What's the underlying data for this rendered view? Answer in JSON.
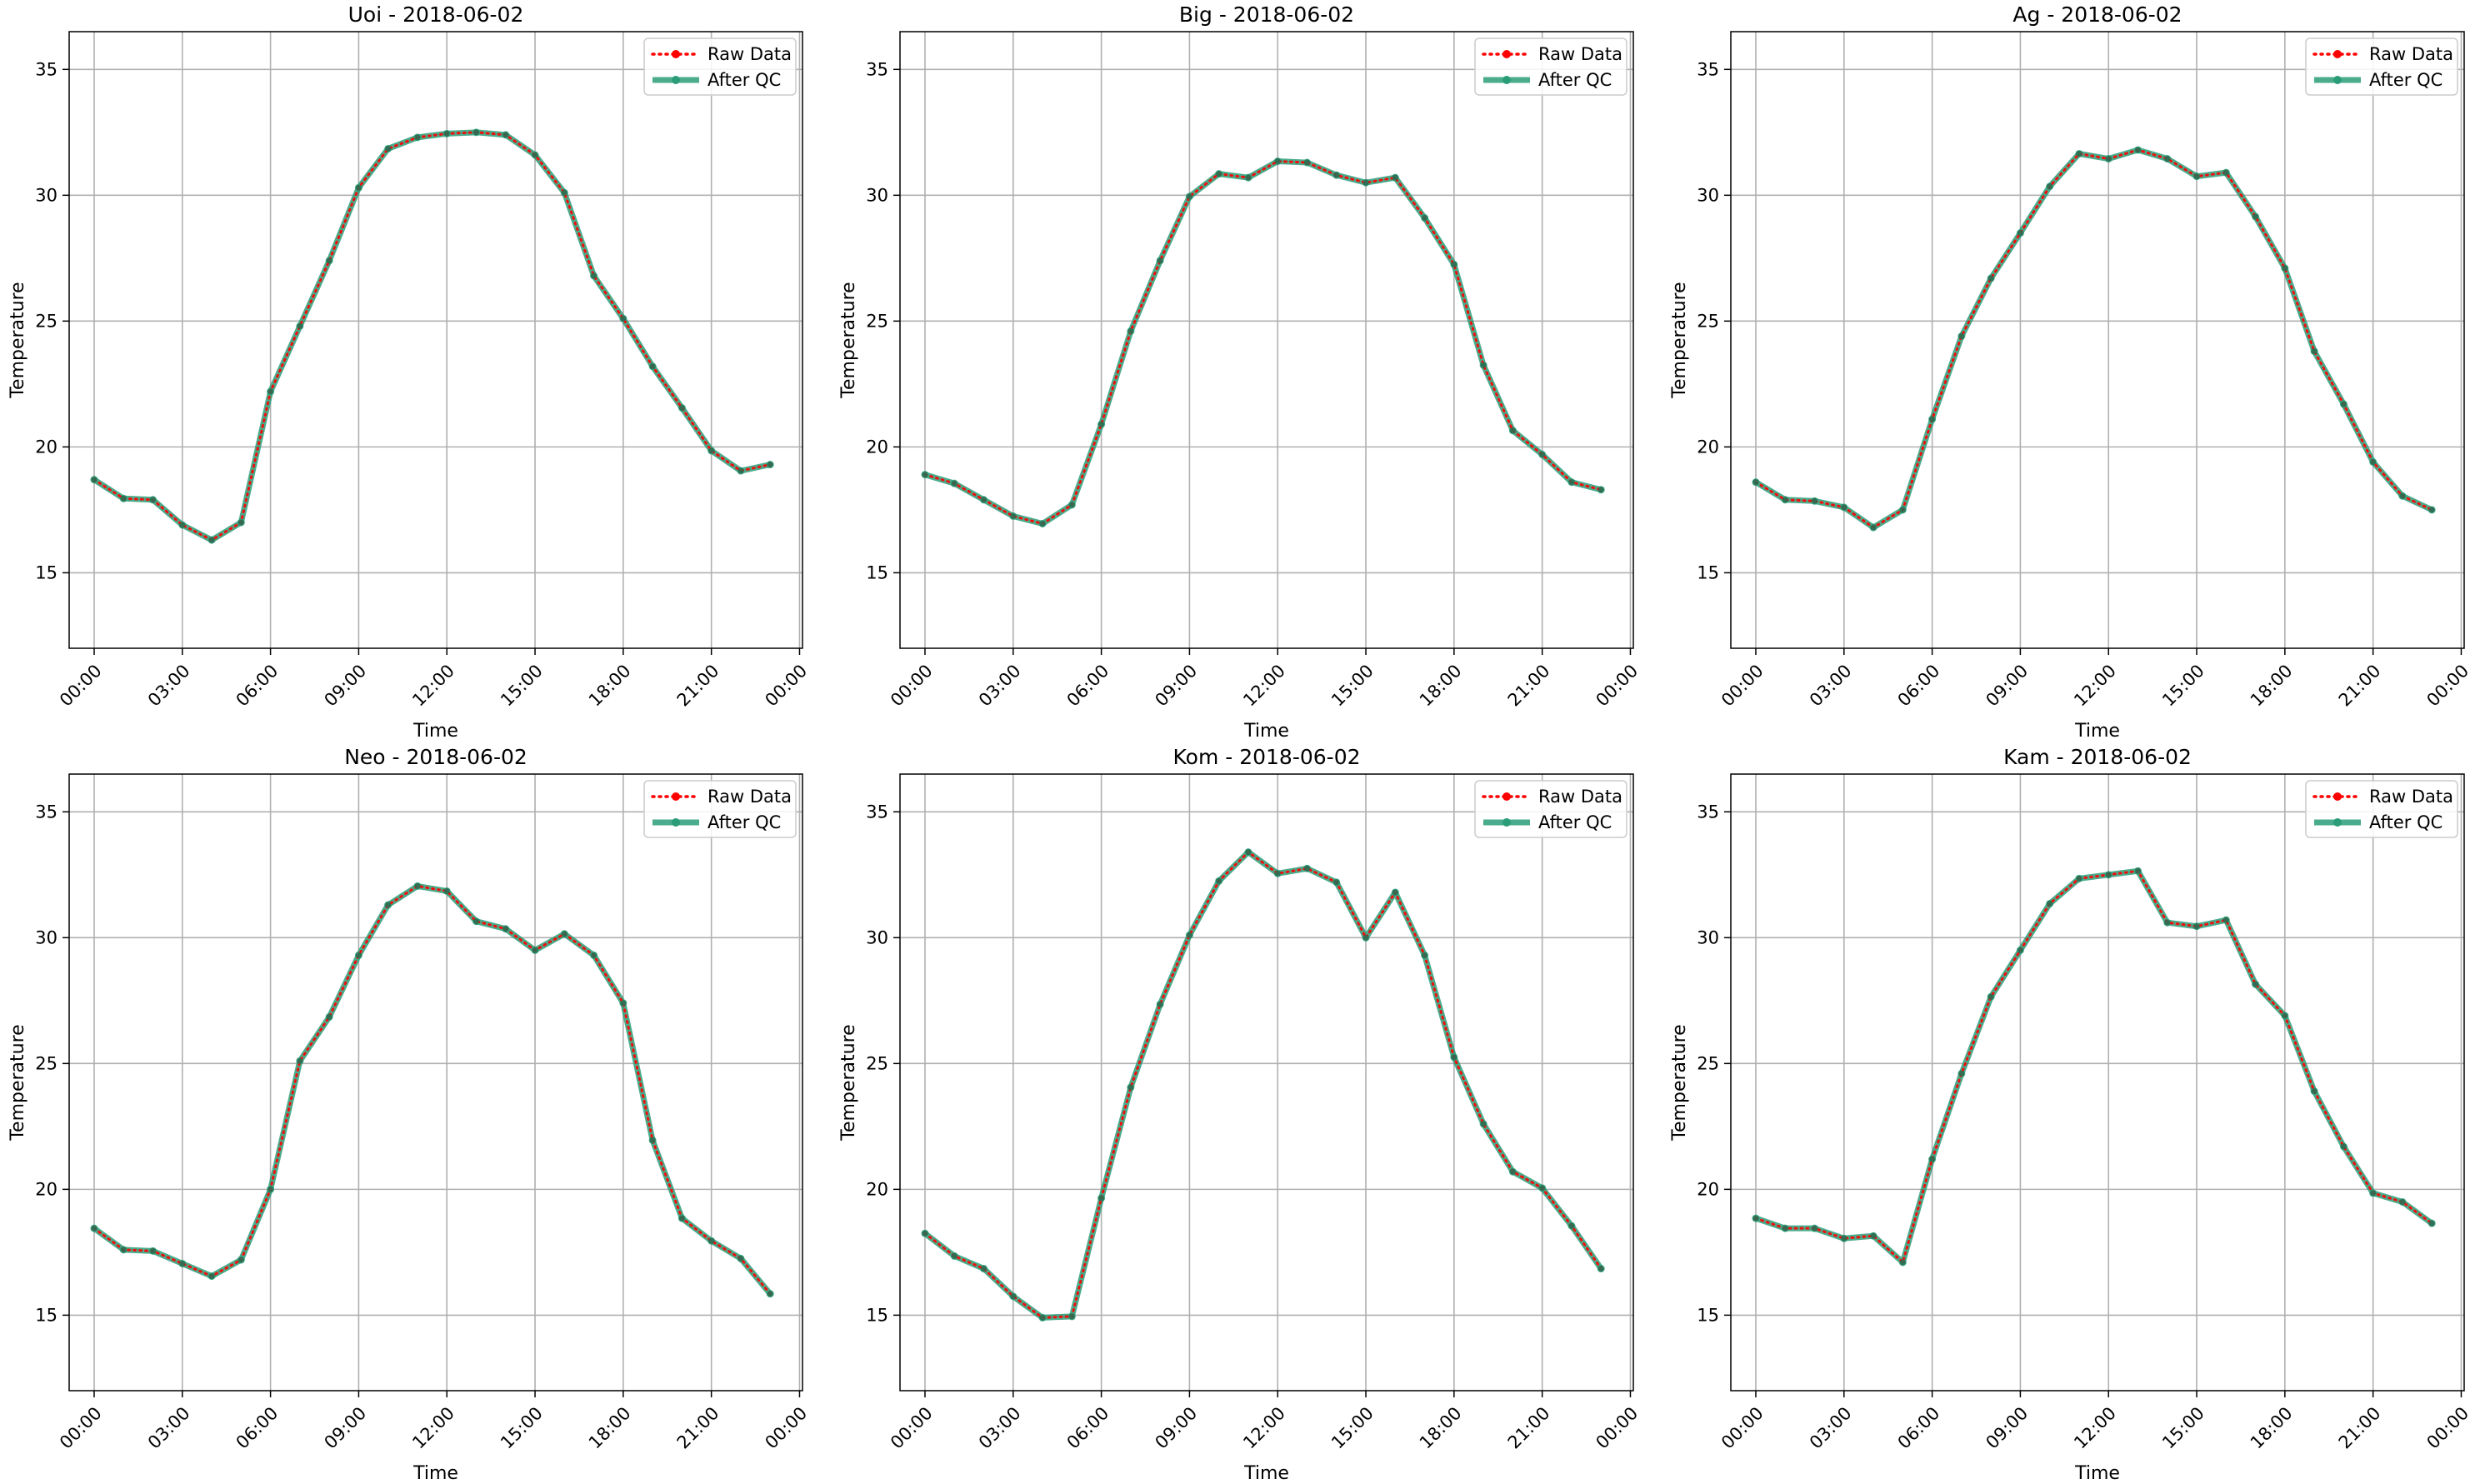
{
  "chart_data": [
    {
      "type": "line",
      "title": "Uoi - 2018-06-02",
      "xlabel": "Time",
      "ylabel": "Temperature",
      "ylim": [
        12,
        36.5
      ],
      "yticks": [
        15,
        20,
        25,
        30,
        35
      ],
      "xlim": [
        -0.85,
        24.1
      ],
      "xticks": [
        0,
        3,
        6,
        9,
        12,
        15,
        18,
        21,
        24
      ],
      "xtick_labels": [
        "00:00",
        "03:00",
        "06:00",
        "09:00",
        "12:00",
        "15:00",
        "18:00",
        "21:00",
        "00:00"
      ],
      "grid": true,
      "legend": "top-right",
      "x": [
        "00:00",
        "01:00",
        "02:00",
        "03:00",
        "04:00",
        "05:00",
        "06:00",
        "07:00",
        "08:00",
        "09:00",
        "10:00",
        "11:00",
        "12:00",
        "13:00",
        "14:00",
        "15:00",
        "16:00",
        "17:00",
        "18:00",
        "19:00",
        "20:00",
        "21:00",
        "22:00",
        "23:00"
      ],
      "series": [
        {
          "name": "Raw Data",
          "color": "#ff0000",
          "style": "dotted",
          "values": [
            18.7,
            17.95,
            17.9,
            16.9,
            16.3,
            17.0,
            22.2,
            24.8,
            27.4,
            30.3,
            31.85,
            32.3,
            32.45,
            32.5,
            32.4,
            31.6,
            30.1,
            26.8,
            25.1,
            23.2,
            21.55,
            19.85,
            19.05,
            19.3
          ]
        },
        {
          "name": "After QC",
          "color": "#2a9d78",
          "style": "solid",
          "values": [
            18.7,
            17.95,
            17.9,
            16.9,
            16.3,
            17.0,
            22.2,
            24.8,
            27.4,
            30.3,
            31.85,
            32.3,
            32.45,
            32.5,
            32.4,
            31.6,
            30.1,
            26.8,
            25.1,
            23.2,
            21.55,
            19.85,
            19.05,
            19.3
          ]
        }
      ]
    },
    {
      "type": "line",
      "title": "Big - 2018-06-02",
      "xlabel": "Time",
      "ylabel": "Temperature",
      "ylim": [
        12,
        36.5
      ],
      "yticks": [
        15,
        20,
        25,
        30,
        35
      ],
      "xlim": [
        -0.85,
        24.1
      ],
      "xticks": [
        0,
        3,
        6,
        9,
        12,
        15,
        18,
        21,
        24
      ],
      "xtick_labels": [
        "00:00",
        "03:00",
        "06:00",
        "09:00",
        "12:00",
        "15:00",
        "18:00",
        "21:00",
        "00:00"
      ],
      "grid": true,
      "legend": "top-right",
      "x": [
        "00:00",
        "01:00",
        "02:00",
        "03:00",
        "04:00",
        "05:00",
        "06:00",
        "07:00",
        "08:00",
        "09:00",
        "10:00",
        "11:00",
        "12:00",
        "13:00",
        "14:00",
        "15:00",
        "16:00",
        "17:00",
        "18:00",
        "19:00",
        "20:00",
        "21:00",
        "22:00",
        "23:00"
      ],
      "series": [
        {
          "name": "Raw Data",
          "color": "#ff0000",
          "style": "dotted",
          "values": [
            18.9,
            18.55,
            17.9,
            17.25,
            16.95,
            17.7,
            20.9,
            24.6,
            27.4,
            29.95,
            30.85,
            30.7,
            31.35,
            31.3,
            30.8,
            30.5,
            30.7,
            29.1,
            27.25,
            23.25,
            20.65,
            19.7,
            18.6,
            18.3
          ]
        },
        {
          "name": "After QC",
          "color": "#2a9d78",
          "style": "solid",
          "values": [
            18.9,
            18.55,
            17.9,
            17.25,
            16.95,
            17.7,
            20.9,
            24.6,
            27.4,
            29.95,
            30.85,
            30.7,
            31.35,
            31.3,
            30.8,
            30.5,
            30.7,
            29.1,
            27.25,
            23.25,
            20.65,
            19.7,
            18.6,
            18.3
          ]
        }
      ]
    },
    {
      "type": "line",
      "title": "Ag - 2018-06-02",
      "xlabel": "Time",
      "ylabel": "Temperature",
      "ylim": [
        12,
        36.5
      ],
      "yticks": [
        15,
        20,
        25,
        30,
        35
      ],
      "xlim": [
        -0.85,
        24.1
      ],
      "xticks": [
        0,
        3,
        6,
        9,
        12,
        15,
        18,
        21,
        24
      ],
      "xtick_labels": [
        "00:00",
        "03:00",
        "06:00",
        "09:00",
        "12:00",
        "15:00",
        "18:00",
        "21:00",
        "00:00"
      ],
      "grid": true,
      "legend": "top-right",
      "x": [
        "00:00",
        "01:00",
        "02:00",
        "03:00",
        "04:00",
        "05:00",
        "06:00",
        "07:00",
        "08:00",
        "09:00",
        "10:00",
        "11:00",
        "12:00",
        "13:00",
        "14:00",
        "15:00",
        "16:00",
        "17:00",
        "18:00",
        "19:00",
        "20:00",
        "21:00",
        "22:00",
        "23:00"
      ],
      "series": [
        {
          "name": "Raw Data",
          "color": "#ff0000",
          "style": "dotted",
          "values": [
            18.6,
            17.9,
            17.85,
            17.6,
            16.8,
            17.5,
            21.1,
            24.4,
            26.7,
            28.5,
            30.35,
            31.65,
            31.45,
            31.8,
            31.45,
            30.75,
            30.9,
            29.15,
            27.1,
            23.8,
            21.7,
            19.4,
            18.05,
            17.5
          ]
        },
        {
          "name": "After QC",
          "color": "#2a9d78",
          "style": "solid",
          "values": [
            18.6,
            17.9,
            17.85,
            17.6,
            16.8,
            17.5,
            21.1,
            24.4,
            26.7,
            28.5,
            30.35,
            31.65,
            31.45,
            31.8,
            31.45,
            30.75,
            30.9,
            29.15,
            27.1,
            23.8,
            21.7,
            19.4,
            18.05,
            17.5
          ]
        }
      ]
    },
    {
      "type": "line",
      "title": "Neo - 2018-06-02",
      "xlabel": "Time",
      "ylabel": "Temperature",
      "ylim": [
        12,
        36.5
      ],
      "yticks": [
        15,
        20,
        25,
        30,
        35
      ],
      "xlim": [
        -0.85,
        24.1
      ],
      "xticks": [
        0,
        3,
        6,
        9,
        12,
        15,
        18,
        21,
        24
      ],
      "xtick_labels": [
        "00:00",
        "03:00",
        "06:00",
        "09:00",
        "12:00",
        "15:00",
        "18:00",
        "21:00",
        "00:00"
      ],
      "grid": true,
      "legend": "top-right",
      "x": [
        "00:00",
        "01:00",
        "02:00",
        "03:00",
        "04:00",
        "05:00",
        "06:00",
        "07:00",
        "08:00",
        "09:00",
        "10:00",
        "11:00",
        "12:00",
        "13:00",
        "14:00",
        "15:00",
        "16:00",
        "17:00",
        "18:00",
        "19:00",
        "20:00",
        "21:00",
        "22:00",
        "23:00"
      ],
      "series": [
        {
          "name": "Raw Data",
          "color": "#ff0000",
          "style": "dotted",
          "values": [
            18.45,
            17.6,
            17.55,
            17.05,
            16.55,
            17.2,
            20.0,
            25.1,
            26.85,
            29.3,
            31.3,
            32.05,
            31.85,
            30.65,
            30.35,
            29.5,
            30.15,
            29.3,
            27.4,
            21.95,
            18.85,
            17.95,
            17.25,
            15.85
          ]
        },
        {
          "name": "After QC",
          "color": "#2a9d78",
          "style": "solid",
          "values": [
            18.45,
            17.6,
            17.55,
            17.05,
            16.55,
            17.2,
            20.0,
            25.1,
            26.85,
            29.3,
            31.3,
            32.05,
            31.85,
            30.65,
            30.35,
            29.5,
            30.15,
            29.3,
            27.4,
            21.95,
            18.85,
            17.95,
            17.25,
            15.85
          ]
        }
      ]
    },
    {
      "type": "line",
      "title": "Kom - 2018-06-02",
      "xlabel": "Time",
      "ylabel": "Temperature",
      "ylim": [
        12,
        36.5
      ],
      "yticks": [
        15,
        20,
        25,
        30,
        35
      ],
      "xlim": [
        -0.85,
        24.1
      ],
      "xticks": [
        0,
        3,
        6,
        9,
        12,
        15,
        18,
        21,
        24
      ],
      "xtick_labels": [
        "00:00",
        "03:00",
        "06:00",
        "09:00",
        "12:00",
        "15:00",
        "18:00",
        "21:00",
        "00:00"
      ],
      "grid": true,
      "legend": "top-right",
      "x": [
        "00:00",
        "01:00",
        "02:00",
        "03:00",
        "04:00",
        "05:00",
        "06:00",
        "07:00",
        "08:00",
        "09:00",
        "10:00",
        "11:00",
        "12:00",
        "13:00",
        "14:00",
        "15:00",
        "16:00",
        "17:00",
        "18:00",
        "19:00",
        "20:00",
        "21:00",
        "22:00",
        "23:00"
      ],
      "series": [
        {
          "name": "Raw Data",
          "color": "#ff0000",
          "style": "dotted",
          "values": [
            18.25,
            17.35,
            16.85,
            15.75,
            14.9,
            14.95,
            19.65,
            24.05,
            27.35,
            30.1,
            32.25,
            33.4,
            32.55,
            32.75,
            32.2,
            30.0,
            31.8,
            29.3,
            25.25,
            22.6,
            20.7,
            20.05,
            18.55,
            16.85
          ]
        },
        {
          "name": "After QC",
          "color": "#2a9d78",
          "style": "solid",
          "values": [
            18.25,
            17.35,
            16.85,
            15.75,
            14.9,
            14.95,
            19.65,
            24.05,
            27.35,
            30.1,
            32.25,
            33.4,
            32.55,
            32.75,
            32.2,
            30.0,
            31.8,
            29.3,
            25.25,
            22.6,
            20.7,
            20.05,
            18.55,
            16.85
          ]
        }
      ]
    },
    {
      "type": "line",
      "title": "Kam - 2018-06-02",
      "xlabel": "Time",
      "ylabel": "Temperature",
      "ylim": [
        12,
        36.5
      ],
      "yticks": [
        15,
        20,
        25,
        30,
        35
      ],
      "xlim": [
        -0.85,
        24.1
      ],
      "xticks": [
        0,
        3,
        6,
        9,
        12,
        15,
        18,
        21,
        24
      ],
      "xtick_labels": [
        "00:00",
        "03:00",
        "06:00",
        "09:00",
        "12:00",
        "15:00",
        "18:00",
        "21:00",
        "00:00"
      ],
      "grid": true,
      "legend": "top-right",
      "x": [
        "00:00",
        "01:00",
        "02:00",
        "03:00",
        "04:00",
        "05:00",
        "06:00",
        "07:00",
        "08:00",
        "09:00",
        "10:00",
        "11:00",
        "12:00",
        "13:00",
        "14:00",
        "15:00",
        "16:00",
        "17:00",
        "18:00",
        "19:00",
        "20:00",
        "21:00",
        "22:00",
        "23:00"
      ],
      "series": [
        {
          "name": "Raw Data",
          "color": "#ff0000",
          "style": "dotted",
          "values": [
            18.85,
            18.45,
            18.45,
            18.05,
            18.15,
            17.1,
            21.2,
            24.6,
            27.65,
            29.5,
            31.35,
            32.35,
            32.5,
            32.65,
            30.6,
            30.45,
            30.7,
            28.15,
            26.9,
            23.9,
            21.7,
            19.85,
            19.5,
            18.65
          ]
        },
        {
          "name": "After QC",
          "color": "#2a9d78",
          "style": "solid",
          "values": [
            18.85,
            18.45,
            18.45,
            18.05,
            18.15,
            17.1,
            21.2,
            24.6,
            27.65,
            29.5,
            31.35,
            32.35,
            32.5,
            32.65,
            30.6,
            30.45,
            30.7,
            28.15,
            26.9,
            23.9,
            21.7,
            19.85,
            19.5,
            18.65
          ]
        }
      ]
    }
  ]
}
